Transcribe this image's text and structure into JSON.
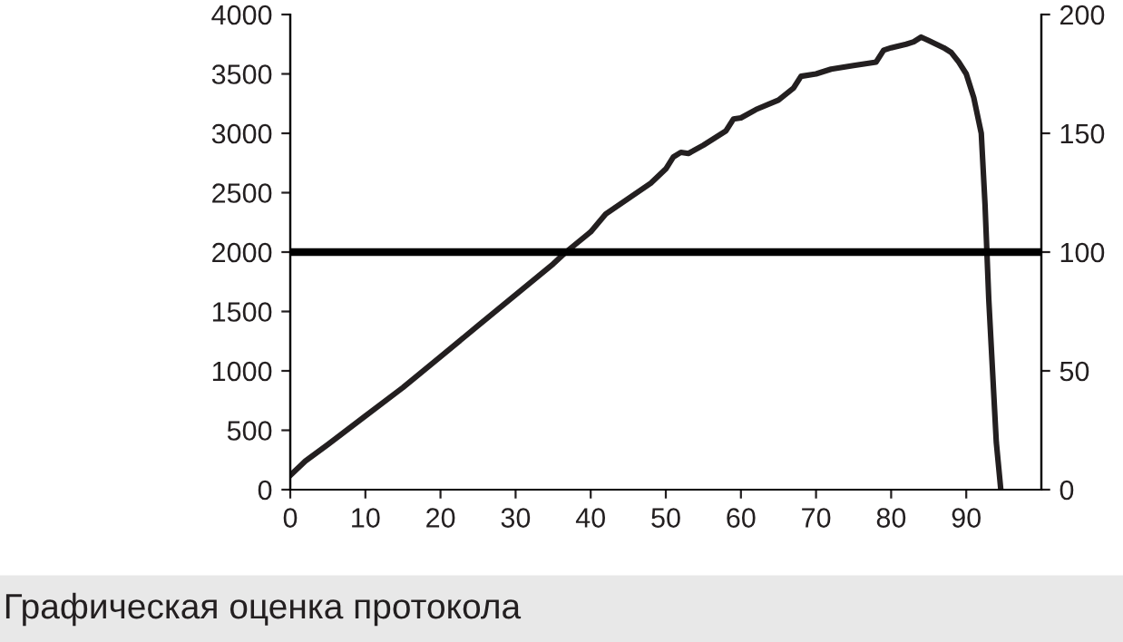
{
  "chart_data": {
    "type": "line",
    "x": [
      0,
      2,
      5,
      10,
      15,
      20,
      25,
      30,
      35,
      36.7,
      40,
      42,
      45,
      48,
      50,
      51,
      52,
      53,
      55,
      58,
      59,
      60,
      62,
      65,
      67,
      68,
      70,
      72,
      75,
      78,
      79,
      80,
      82,
      83,
      84,
      85,
      87,
      88,
      89,
      90,
      91,
      92,
      92.5,
      93,
      93.5,
      94,
      94.6
    ],
    "series": [
      {
        "color": "#231f20",
        "axis": "y",
        "values": [
          120,
          240,
          380,
          620,
          860,
          1120,
          1380,
          1640,
          1900,
          2000,
          2170,
          2320,
          2450,
          2580,
          2700,
          2800,
          2840,
          2830,
          2900,
          3020,
          3120,
          3130,
          3200,
          3280,
          3380,
          3480,
          3500,
          3540,
          3570,
          3600,
          3700,
          3720,
          3750,
          3770,
          3810,
          3780,
          3720,
          3680,
          3600,
          3500,
          3300,
          3000,
          2400,
          1600,
          1000,
          400,
          0
        ]
      }
    ],
    "xlim": [
      0,
      100
    ],
    "xticks": [
      0,
      10,
      20,
      30,
      40,
      50,
      60,
      70,
      80,
      90
    ],
    "ylim": [
      0,
      4000
    ],
    "yticks": [
      0,
      500,
      1000,
      1500,
      2000,
      2500,
      3000,
      3500,
      4000
    ],
    "y2lim": [
      0,
      200
    ],
    "y2ticks": [
      0,
      50,
      100,
      150,
      200
    ],
    "ref_lines": [
      {
        "axis": "y",
        "value": 2000,
        "color": "#000000",
        "line_style": "solid"
      }
    ],
    "grid": false,
    "legend": false,
    "line_style": "solid",
    "marker": "none",
    "annotations": [
      "Графическая оценка протокола"
    ]
  }
}
